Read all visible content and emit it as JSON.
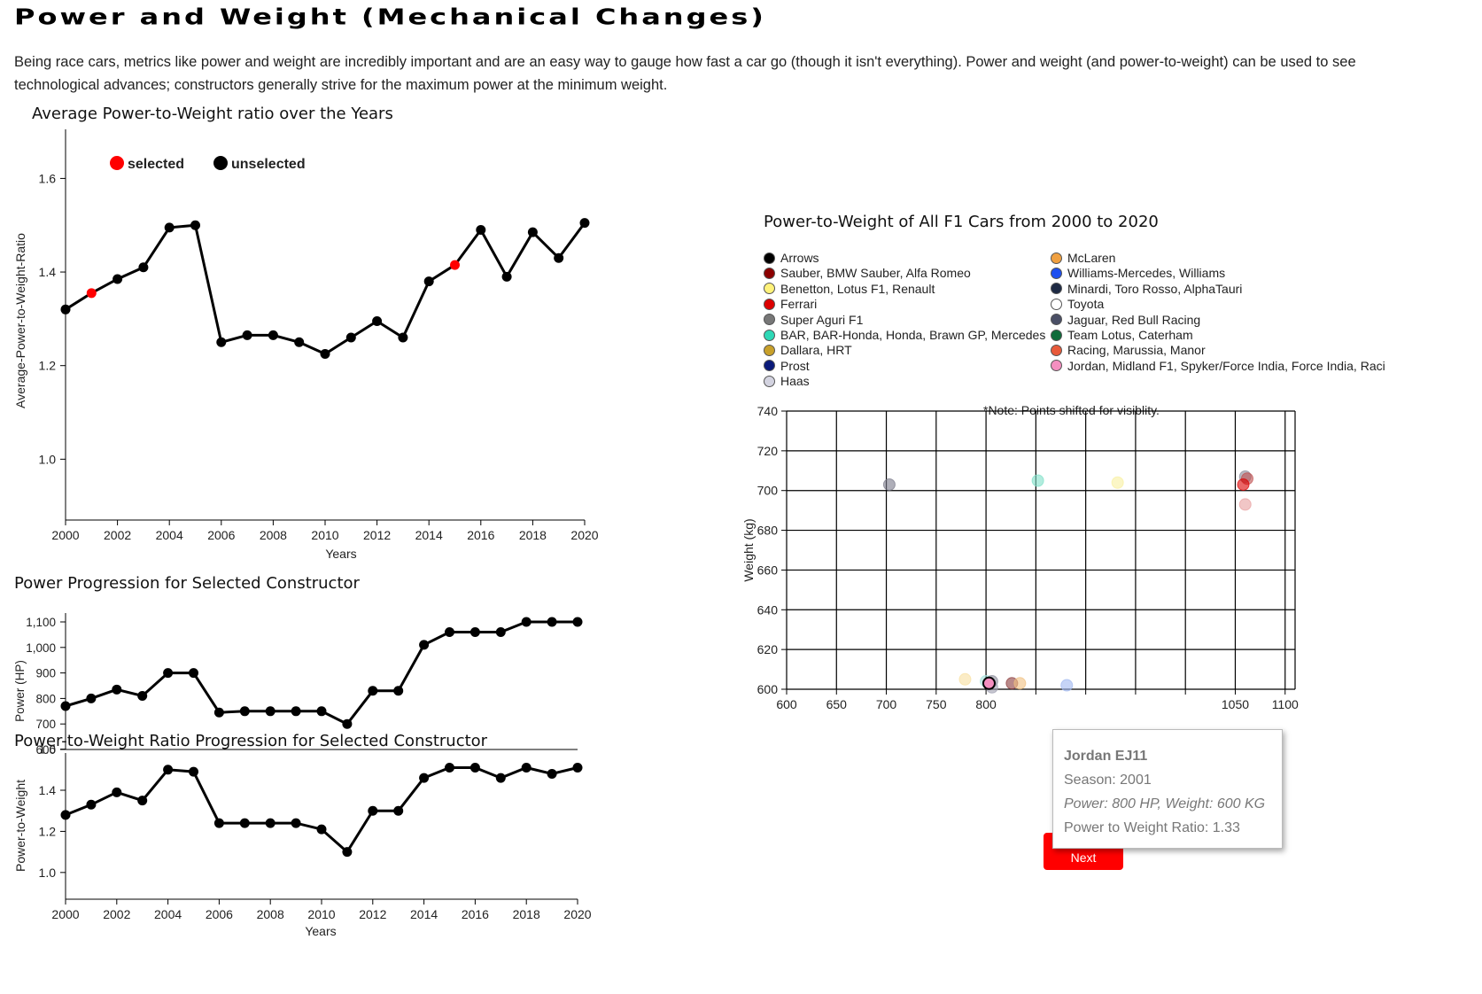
{
  "page": {
    "title": "Power and Weight (Mechanical Changes)",
    "intro": "Being race cars, metrics like power and weight are incredibly important and are an easy way to gauge how fast a car go (though it isn't everything). Power and weight (and power-to-weight) can be used to see technological advances; constructors generally strive for the maximum power at the minimum weight."
  },
  "chart_data": [
    {
      "type": "line",
      "title": "Average Power-to-Weight ratio over the Years",
      "xlabel": "Years",
      "ylabel": "Average-Power-to-Weight-Ratio",
      "xlim": [
        2000,
        2020
      ],
      "ylim": [
        0.87,
        1.65
      ],
      "x_ticks": [
        2000,
        2002,
        2004,
        2006,
        2008,
        2010,
        2012,
        2014,
        2016,
        2018,
        2020
      ],
      "y_ticks": [
        "1.0",
        "1.2",
        "1.4",
        "1.6"
      ],
      "legend": [
        {
          "label": "selected",
          "color": "#ff0000"
        },
        {
          "label": "unselected",
          "color": "#000000"
        }
      ],
      "legend_position": "top-left",
      "x": [
        2000,
        2001,
        2002,
        2003,
        2004,
        2005,
        2006,
        2007,
        2008,
        2009,
        2010,
        2011,
        2012,
        2013,
        2014,
        2015,
        2016,
        2017,
        2018,
        2019,
        2020
      ],
      "values": [
        1.32,
        1.355,
        1.385,
        1.41,
        1.495,
        1.5,
        1.25,
        1.265,
        1.265,
        1.25,
        1.225,
        1.26,
        1.295,
        1.26,
        1.38,
        1.415,
        1.49,
        1.39,
        1.485,
        1.43,
        1.505
      ],
      "selected_years": [
        2001,
        2015
      ],
      "line_color": "#000000",
      "selected_color": "#ff0000"
    },
    {
      "type": "line",
      "title": "Power Progression for Selected Constructor",
      "xlabel": "",
      "ylabel": "Power (HP)",
      "xlim": [
        2000,
        2020
      ],
      "ylim": [
        600,
        1100
      ],
      "y_ticks": [
        "600",
        "700",
        "800",
        "900",
        "1,000",
        "1,100"
      ],
      "x": [
        2000,
        2001,
        2002,
        2003,
        2004,
        2005,
        2006,
        2007,
        2008,
        2009,
        2010,
        2011,
        2012,
        2013,
        2014,
        2015,
        2016,
        2017,
        2018,
        2019,
        2020
      ],
      "values": [
        770,
        800,
        835,
        810,
        900,
        900,
        745,
        750,
        750,
        750,
        750,
        700,
        830,
        830,
        1010,
        1060,
        1060,
        1060,
        1100,
        1100,
        1100
      ]
    },
    {
      "type": "line",
      "title": "Power-to-Weight Ratio Progression for Selected Constructor",
      "xlabel": "Years",
      "ylabel": "Power-to-Weight",
      "xlim": [
        2000,
        2020
      ],
      "ylim": [
        0.87,
        1.65
      ],
      "x_ticks": [
        2000,
        2002,
        2004,
        2006,
        2008,
        2010,
        2012,
        2014,
        2016,
        2018,
        2020
      ],
      "y_ticks": [
        "1.0",
        "1.2",
        "1.4",
        "1.6"
      ],
      "x": [
        2000,
        2001,
        2002,
        2003,
        2004,
        2005,
        2006,
        2007,
        2008,
        2009,
        2010,
        2011,
        2012,
        2013,
        2014,
        2015,
        2016,
        2017,
        2018,
        2019,
        2020
      ],
      "values": [
        1.28,
        1.33,
        1.39,
        1.35,
        1.5,
        1.49,
        1.24,
        1.24,
        1.24,
        1.24,
        1.21,
        1.1,
        1.3,
        1.3,
        1.46,
        1.51,
        1.51,
        1.46,
        1.51,
        1.48,
        1.51
      ]
    },
    {
      "type": "scatter",
      "title": "Power-to-Weight of All F1 Cars from 2000 to 2020",
      "note": "*Note: Points shifted for visiblity.",
      "xlabel": "",
      "ylabel": "Weight (kg)",
      "xlim": [
        600,
        1110
      ],
      "ylim": [
        600,
        740
      ],
      "x_ticks": [
        600,
        650,
        700,
        750,
        800,
        850,
        900,
        950,
        1000,
        1050,
        1100
      ],
      "x_tick_labels_visible": [
        "600",
        "650",
        "700",
        "750",
        "800",
        "1050",
        "1100"
      ],
      "y_ticks": [
        600,
        620,
        640,
        660,
        680,
        700,
        720,
        740
      ],
      "grid": true,
      "legend": [
        {
          "label": "Arrows",
          "color": "#000000"
        },
        {
          "label": "Sauber, BMW Sauber, Alfa Romeo",
          "color": "#8b0000"
        },
        {
          "label": "Benetton, Lotus F1, Renault",
          "color": "#fff27a"
        },
        {
          "label": "Ferrari",
          "color": "#dc0000"
        },
        {
          "label": "Super Aguri F1",
          "color": "#777777"
        },
        {
          "label": "BAR, BAR-Honda, Honda, Brawn GP, Mercedes",
          "color": "#2ed8b6"
        },
        {
          "label": "Dallara, HRT",
          "color": "#c8a02a"
        },
        {
          "label": "Prost",
          "color": "#0a1a7a"
        },
        {
          "label": "Haas",
          "color": "#d3d3e0"
        },
        {
          "label": "McLaren",
          "color": "#f0a040"
        },
        {
          "label": "Williams-Mercedes, Williams",
          "color": "#1d4ff0"
        },
        {
          "label": "Minardi, Toro Rosso, AlphaTauri",
          "color": "#1e2a44"
        },
        {
          "label": "Toyota",
          "color": "#ffffff"
        },
        {
          "label": "Jaguar, Red Bull Racing",
          "color": "#4a4f66"
        },
        {
          "label": "Team Lotus, Caterham",
          "color": "#0f6b3a"
        },
        {
          "label": "Racing, Marussia, Manor",
          "color": "#e85a3a"
        },
        {
          "label": "Jordan, Midland F1, Spyker/Force India, Force India, Raci",
          "color": "#f48fc0"
        }
      ],
      "points": [
        {
          "x": 703,
          "y": 703,
          "color": "#7a7a8a"
        },
        {
          "x": 852,
          "y": 705,
          "color": "#7fe0c8"
        },
        {
          "x": 932,
          "y": 704,
          "color": "#f8f0a0"
        },
        {
          "x": 1060,
          "y": 707,
          "color": "#8a8a9a"
        },
        {
          "x": 1062,
          "y": 706,
          "color": "#c05050"
        },
        {
          "x": 1058,
          "y": 703,
          "color": "#dc0000"
        },
        {
          "x": 1060,
          "y": 693,
          "color": "#e8a0a0"
        },
        {
          "x": 779,
          "y": 605,
          "color": "#f8e0a0"
        },
        {
          "x": 800,
          "y": 604,
          "color": "#9ee0d8"
        },
        {
          "x": 806,
          "y": 604,
          "color": "#8a8a9a"
        },
        {
          "x": 806,
          "y": 601,
          "color": "#a0a0b0"
        },
        {
          "x": 826,
          "y": 603,
          "color": "#8b3a3a"
        },
        {
          "x": 834,
          "y": 603,
          "color": "#f0c080"
        },
        {
          "x": 881,
          "y": 602,
          "color": "#a0b8f0"
        },
        {
          "x": 803,
          "y": 603,
          "color": "#f48fc0",
          "highlight": true
        }
      ]
    }
  ],
  "tooltip": {
    "name": "Jordan EJ11",
    "season": "Season: 2001",
    "stats": "Power: 800 HP, Weight: 600 KG",
    "ratio": "Power to Weight Ratio: 1.33"
  },
  "controls": {
    "next_label": "Next"
  }
}
